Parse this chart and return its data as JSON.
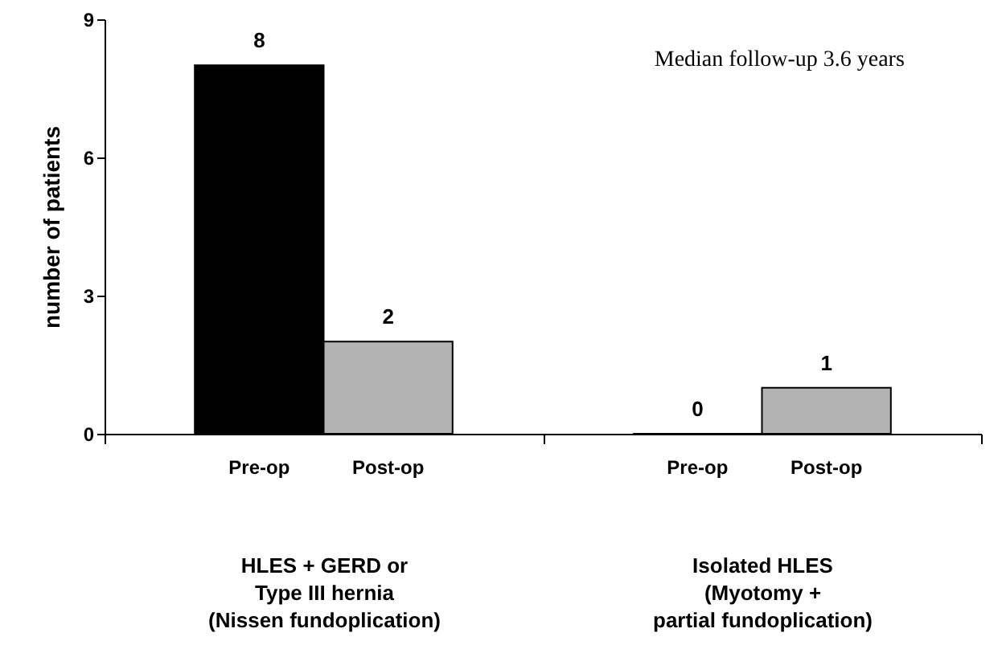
{
  "chart_data": {
    "type": "bar",
    "ylabel": "number of patients",
    "categories": [
      "HLES + GERD or\nType III hernia\n(Nissen fundoplication)",
      "Isolated HLES\n(Myotomy +\npartial fundoplication)"
    ],
    "series": [
      {
        "name": "Pre-op",
        "color": "#000000",
        "values": [
          8,
          0
        ]
      },
      {
        "name": "Post-op",
        "color": "#b3b3b3",
        "values": [
          2,
          1
        ]
      }
    ],
    "ylim": [
      0,
      9
    ],
    "yticks": [
      0,
      3,
      6,
      9
    ],
    "grid": false,
    "data_labels": true,
    "annotations": [
      "Median follow-up 3.6 years"
    ]
  }
}
